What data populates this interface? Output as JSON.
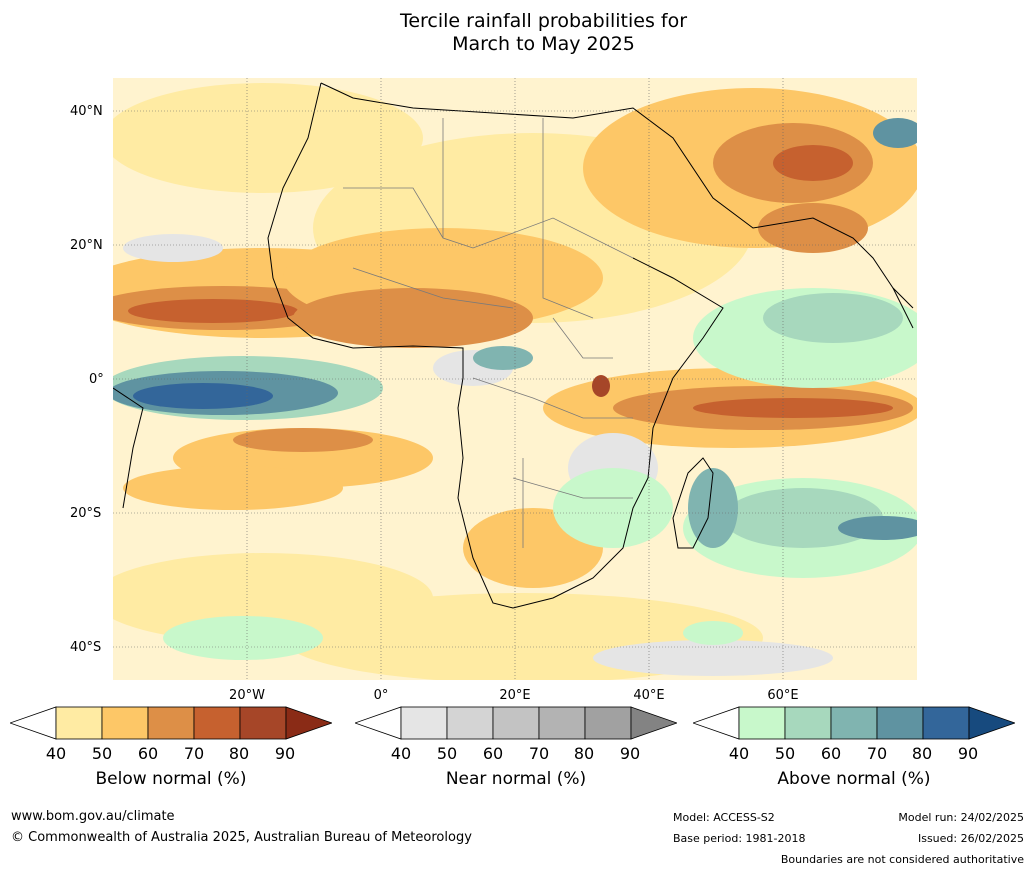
{
  "title": {
    "line1": "Tercile rainfall probabilities for",
    "line2": "March to May 2025"
  },
  "map": {
    "lat_labels": [
      "40°N",
      "20°N",
      "0°",
      "20°S",
      "40°S"
    ],
    "lon_labels": [
      "20°W",
      "0°",
      "20°E",
      "40°E",
      "60°E"
    ]
  },
  "colorbars": [
    {
      "label": "Below normal (%)",
      "ticks": [
        "40",
        "50",
        "60",
        "70",
        "80",
        "90"
      ],
      "colors": [
        "#ffffff",
        "#ffeba3",
        "#fdc767",
        "#dd8f47",
        "#c6612f",
        "#a64628",
        "#8a2b16"
      ]
    },
    {
      "label": "Near normal (%)",
      "ticks": [
        "40",
        "50",
        "60",
        "70",
        "80",
        "90"
      ],
      "colors": [
        "#ffffff",
        "#e5e5e5",
        "#d4d4d4",
        "#c3c3c3",
        "#b3b3b3",
        "#a1a1a1",
        "#838383"
      ]
    },
    {
      "label": "Above normal (%)",
      "ticks": [
        "40",
        "50",
        "60",
        "70",
        "80",
        "90"
      ],
      "colors": [
        "#ffffff",
        "#c8f8cb",
        "#a7d8bd",
        "#80b4b0",
        "#5f93a1",
        "#33669a",
        "#174a7e"
      ]
    }
  ],
  "footer": {
    "website": "www.bom.gov.au/climate",
    "copyright": "© Commonwealth of Australia 2025, Australian Bureau of Meteorology",
    "model": "Model: ACCESS-S2",
    "base_period": "Base period: 1981-2018",
    "model_run": "Model run: 24/02/2025",
    "issued": "Issued: 26/02/2025",
    "disclaimer": "Boundaries are not considered authoritative"
  }
}
